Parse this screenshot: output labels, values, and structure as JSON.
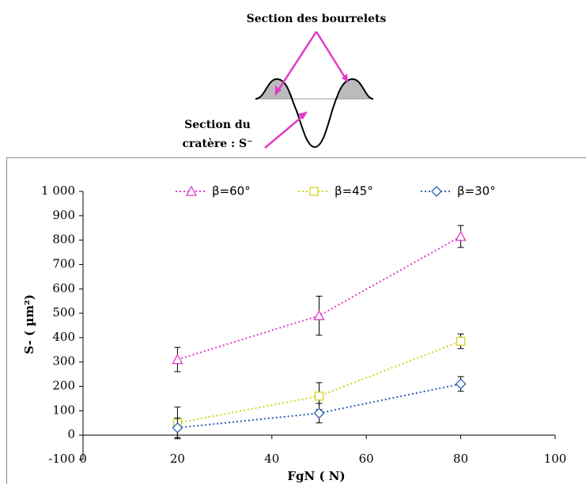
{
  "diagram": {
    "top_label": "Section des bourrelets",
    "bottom_label_1": "Section du",
    "bottom_label_2": "cratère : S⁻"
  },
  "chart_data": {
    "type": "line",
    "ylabel": "S- ( µm²)",
    "xlabel": "FgN ( N)",
    "xlim": [
      0,
      100
    ],
    "xticks": [
      0,
      20,
      40,
      60,
      80,
      100
    ],
    "ylim": [
      -100,
      1000
    ],
    "yticks": [
      -100,
      0,
      100,
      200,
      300,
      400,
      500,
      600,
      700,
      800,
      900,
      {
        "value": 1000,
        "label": "1 000"
      }
    ],
    "legend": "top",
    "series": [
      {
        "name": "β=60°",
        "color": "#e03cc8",
        "marker": "triangle",
        "x": [
          20,
          50,
          80
        ],
        "values": [
          310,
          490,
          815
        ],
        "errors": [
          50,
          80,
          45
        ]
      },
      {
        "name": "β=45°",
        "color": "#d2d21e",
        "marker": "square",
        "x": [
          20,
          50,
          80
        ],
        "values": [
          50,
          160,
          385
        ],
        "errors": [
          65,
          55,
          30
        ]
      },
      {
        "name": "β=30°",
        "color": "#2f5fb0",
        "marker": "diamond",
        "x": [
          20,
          50,
          80
        ],
        "values": [
          30,
          90,
          210
        ],
        "errors": [
          40,
          40,
          30
        ]
      }
    ]
  }
}
